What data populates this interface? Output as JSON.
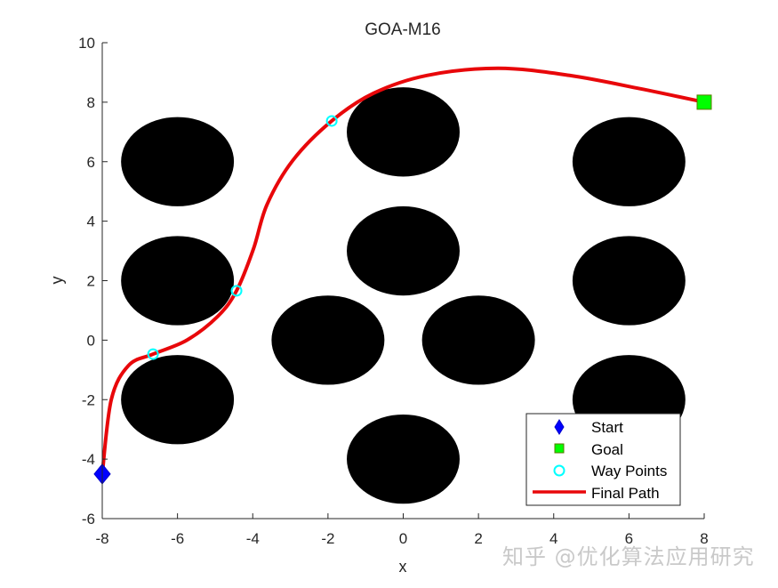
{
  "chart_data": {
    "type": "scatter",
    "title": "GOA-M16",
    "xlabel": "x",
    "ylabel": "y",
    "xlim": [
      -8,
      8
    ],
    "ylim": [
      -6,
      10
    ],
    "xticks": [
      -8,
      -6,
      -4,
      -2,
      0,
      2,
      4,
      6,
      8
    ],
    "yticks": [
      -6,
      -4,
      -2,
      0,
      2,
      4,
      6,
      8,
      10
    ],
    "grid": false,
    "legend_position": "lower right",
    "obstacles": {
      "shape": "circle",
      "radius": 1.5,
      "color": "#000000",
      "centers": [
        [
          -6,
          6
        ],
        [
          -6,
          2
        ],
        [
          -6,
          -2
        ],
        [
          0,
          7
        ],
        [
          0,
          3
        ],
        [
          -2,
          0
        ],
        [
          2,
          0
        ],
        [
          0,
          -4
        ],
        [
          6,
          6
        ],
        [
          6,
          2
        ],
        [
          6,
          -2
        ]
      ]
    },
    "series": [
      {
        "name": "Start",
        "marker": "diamond",
        "color": "#0000ff",
        "points": [
          [
            -8,
            -4.5
          ]
        ]
      },
      {
        "name": "Goal",
        "marker": "square",
        "color": "#00ff00",
        "points": [
          [
            8,
            8
          ]
        ]
      },
      {
        "name": "Way Points",
        "marker": "circle-open",
        "color": "#00ffff",
        "points": [
          [
            -6.65,
            -0.47
          ],
          [
            -4.43,
            1.66
          ],
          [
            -1.9,
            7.37
          ]
        ]
      },
      {
        "name": "Final Path",
        "marker": "line",
        "color": "#ff0000",
        "points": [
          [
            -8,
            -4.5
          ],
          [
            -7.76,
            -2.0
          ],
          [
            -7.3,
            -0.85
          ],
          [
            -6.65,
            -0.47
          ],
          [
            -5.75,
            0.0
          ],
          [
            -4.93,
            0.8
          ],
          [
            -4.43,
            1.66
          ],
          [
            -3.98,
            3.07
          ],
          [
            -3.62,
            4.56
          ],
          [
            -2.93,
            6.05
          ],
          [
            -1.9,
            7.37
          ],
          [
            -0.79,
            8.3
          ],
          [
            0.63,
            8.9
          ],
          [
            2.52,
            9.14
          ],
          [
            4.42,
            8.9
          ],
          [
            6.31,
            8.45
          ],
          [
            8,
            8
          ]
        ]
      }
    ]
  },
  "legend": {
    "items": [
      {
        "label": "Start"
      },
      {
        "label": "Goal"
      },
      {
        "label": "Way Points"
      },
      {
        "label": "Final Path"
      }
    ]
  },
  "axes": {
    "title": "GOA-M16",
    "xlabel": "x",
    "ylabel": "y",
    "xtick_labels": [
      "-8",
      "-6",
      "-4",
      "-2",
      "0",
      "2",
      "4",
      "6",
      "8"
    ],
    "ytick_labels": [
      "-6",
      "-4",
      "-2",
      "0",
      "2",
      "4",
      "6",
      "8",
      "10"
    ]
  },
  "watermark": "知乎 @优化算法应用研究"
}
